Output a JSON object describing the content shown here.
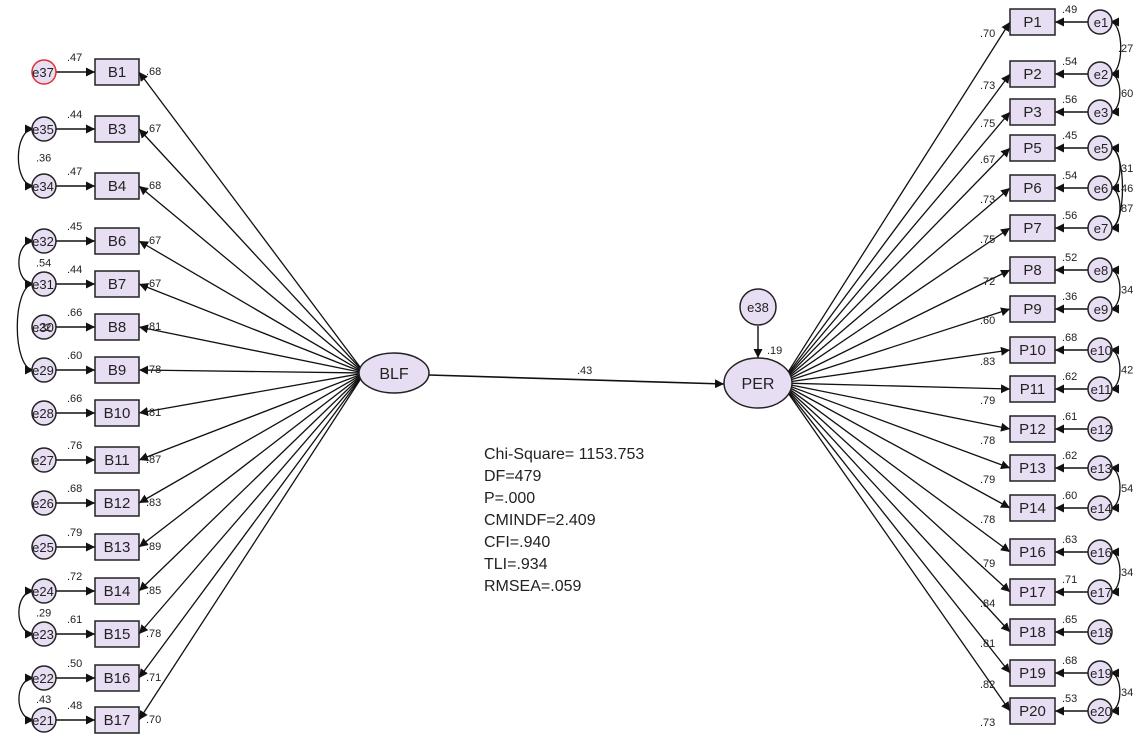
{
  "colors": {
    "fill": "#e8def3",
    "stroke": "#222222",
    "highlight": "#e03030",
    "background": "#ffffff"
  },
  "latents": {
    "blf": {
      "label": "BLF"
    },
    "per": {
      "label": "PER"
    },
    "per_error": {
      "label": "e38"
    }
  },
  "structural_path": {
    "from": "BLF",
    "to": "PER",
    "coef": ".43"
  },
  "per_r2": ".19",
  "fit_stats": [
    "Chi-Square= 1153.753",
    "DF=479",
    "P=.000",
    "CMINDF=2.409",
    "CFI=.940",
    "TLI=.934",
    "RMSEA=.059"
  ],
  "blf_indicators": [
    {
      "label": "B1",
      "error": "e37",
      "r2": ".47",
      "loading": ".68",
      "highlight": true
    },
    {
      "label": "B3",
      "error": "e35",
      "r2": ".44",
      "loading": ".67"
    },
    {
      "label": "B4",
      "error": "e34",
      "r2": ".47",
      "loading": ".68"
    },
    {
      "label": "B6",
      "error": "e32",
      "r2": ".45",
      "loading": ".67"
    },
    {
      "label": "B7",
      "error": "e31",
      "r2": ".44",
      "loading": ".67"
    },
    {
      "label": "B8",
      "error": "e30",
      "r2": ".66",
      "loading": ".81"
    },
    {
      "label": "B9",
      "error": "e29",
      "r2": ".60",
      "loading": ".78"
    },
    {
      "label": "B10",
      "error": "e28",
      "r2": ".66",
      "loading": ".81"
    },
    {
      "label": "B11",
      "error": "e27",
      "r2": ".76",
      "loading": ".87"
    },
    {
      "label": "B12",
      "error": "e26",
      "r2": ".68",
      "loading": ".83"
    },
    {
      "label": "B13",
      "error": "e25",
      "r2": ".79",
      "loading": ".89"
    },
    {
      "label": "B14",
      "error": "e24",
      "r2": ".72",
      "loading": ".85"
    },
    {
      "label": "B15",
      "error": "e23",
      "r2": ".61",
      "loading": ".78"
    },
    {
      "label": "B16",
      "error": "e22",
      "r2": ".50",
      "loading": ".71"
    },
    {
      "label": "B17",
      "error": "e21",
      "r2": ".48",
      "loading": ".70"
    }
  ],
  "blf_covariances": [
    {
      "a": "e35",
      "b": "e34",
      "value": ".36"
    },
    {
      "a": "e32",
      "b": "e31",
      "value": ".54"
    },
    {
      "a": "e31",
      "b": "e29",
      "value": ".22"
    },
    {
      "a": "e24",
      "b": "e23",
      "value": ".29"
    },
    {
      "a": "e22",
      "b": "e21",
      "value": ".43"
    }
  ],
  "per_indicators": [
    {
      "label": "P1",
      "error": "e1",
      "r2": ".49",
      "loading": ".70"
    },
    {
      "label": "P2",
      "error": "e2",
      "r2": ".54",
      "loading": ".73"
    },
    {
      "label": "P3",
      "error": "e3",
      "r2": ".56",
      "loading": ".75"
    },
    {
      "label": "P5",
      "error": "e5",
      "r2": ".45",
      "loading": ".67"
    },
    {
      "label": "P6",
      "error": "e6",
      "r2": ".54",
      "loading": ".73"
    },
    {
      "label": "P7",
      "error": "e7",
      "r2": ".56",
      "loading": ".75"
    },
    {
      "label": "P8",
      "error": "e8",
      "r2": ".52",
      "loading": ".72"
    },
    {
      "label": "P9",
      "error": "e9",
      "r2": ".36",
      "loading": ".60"
    },
    {
      "label": "P10",
      "error": "e10",
      "r2": ".68",
      "loading": ".83"
    },
    {
      "label": "P11",
      "error": "e11",
      "r2": ".62",
      "loading": ".79"
    },
    {
      "label": "P12",
      "error": "e12",
      "r2": ".61",
      "loading": ".78"
    },
    {
      "label": "P13",
      "error": "e13",
      "r2": ".62",
      "loading": ".79"
    },
    {
      "label": "P14",
      "error": "e14",
      "r2": ".60",
      "loading": ".78"
    },
    {
      "label": "P16",
      "error": "e16",
      "r2": ".63",
      "loading": ".79"
    },
    {
      "label": "P17",
      "error": "e17",
      "r2": ".71",
      "loading": ".84"
    },
    {
      "label": "P18",
      "error": "e18",
      "r2": ".65",
      "loading": ".81"
    },
    {
      "label": "P19",
      "error": "e19",
      "r2": ".68",
      "loading": ".82"
    },
    {
      "label": "P20",
      "error": "e20",
      "r2": ".53",
      "loading": ".73"
    }
  ],
  "per_covariances": [
    {
      "a": "e1",
      "b": "e2",
      "value": ".27"
    },
    {
      "a": "e2",
      "b": "e3",
      "value": ".60"
    },
    {
      "a": "e5",
      "b": "e6",
      "value": ".31"
    },
    {
      "a": "e5",
      "b": "e7",
      "value": ".46"
    },
    {
      "a": "e6",
      "b": "e7",
      "value": ".87"
    },
    {
      "a": "e8",
      "b": "e9",
      "value": ".34"
    },
    {
      "a": "e10",
      "b": "e11",
      "value": ".42"
    },
    {
      "a": "e13",
      "b": "e14",
      "value": ".54"
    },
    {
      "a": "e16",
      "b": "e17",
      "value": ".34"
    },
    {
      "a": "e19",
      "b": "e20",
      "value": ".34"
    }
  ]
}
